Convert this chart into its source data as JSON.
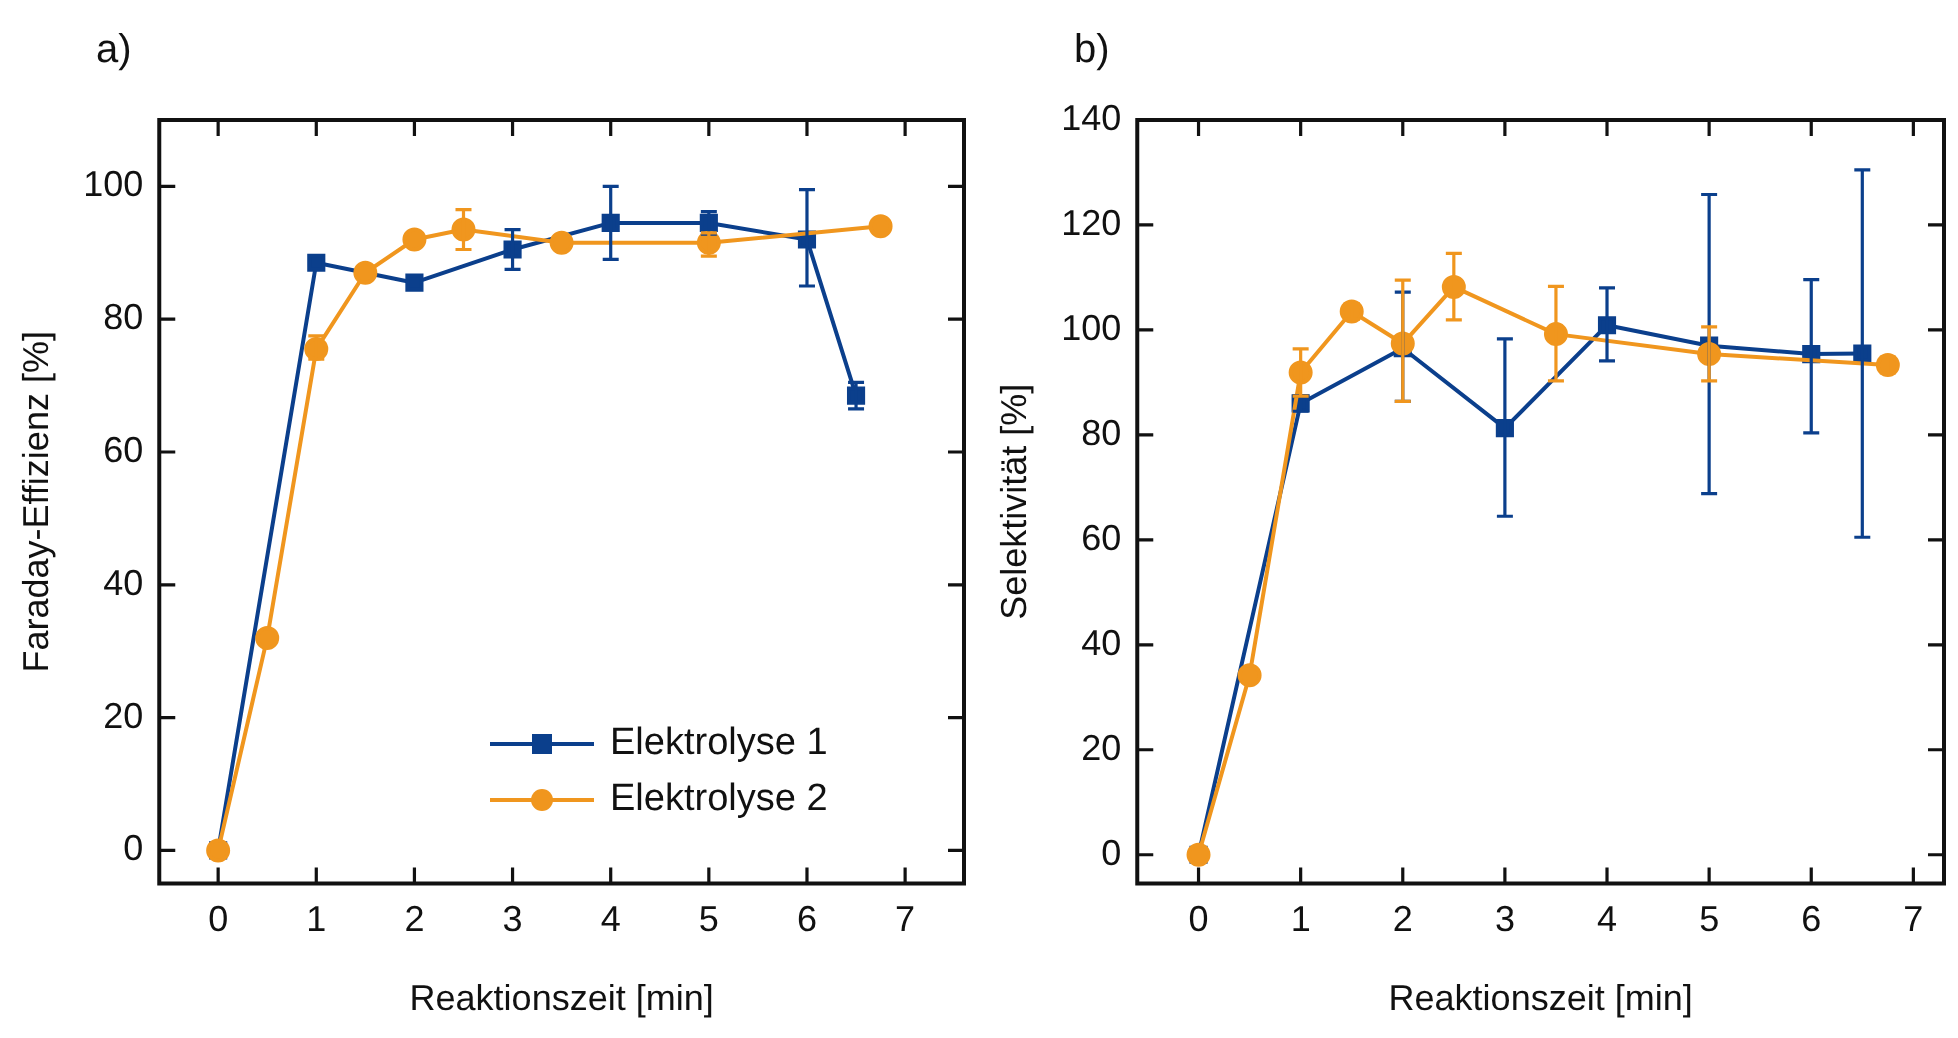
{
  "chart_data": [
    {
      "type": "line",
      "title": "a)",
      "xlabel": "Reaktionszeit [min]",
      "ylabel": "Faraday-Effizienz [%]",
      "xlim": [
        -0.6,
        7.6
      ],
      "ylim": [
        -5,
        110
      ],
      "xticks": [
        0,
        1,
        2,
        3,
        4,
        5,
        6,
        7
      ],
      "yticks": [
        0,
        20,
        40,
        60,
        80,
        100
      ],
      "grid": false,
      "legend": "bottom right",
      "line_style": "solid",
      "series": [
        {
          "name": "Elektrolyse 1",
          "color": "#0b3f8c",
          "marker": "square",
          "x": [
            0,
            1,
            2,
            3,
            4,
            5,
            6,
            6.5
          ],
          "values": [
            0,
            88.5,
            85.5,
            90.5,
            94.5,
            94.5,
            92,
            68.5
          ],
          "errors": [
            null,
            null,
            null,
            [
              87.5,
              93.5
            ],
            [
              89,
              100
            ],
            [
              92.8,
              96.2
            ],
            [
              85,
              99.5
            ],
            [
              66.5,
              70.5
            ]
          ]
        },
        {
          "name": "Elektrolyse 2",
          "color": "#f0961e",
          "marker": "circle",
          "x": [
            0,
            0.5,
            1,
            1.5,
            2,
            2.5,
            3.5,
            5,
            6.75
          ],
          "values": [
            0,
            32,
            75.5,
            87,
            92,
            93.5,
            91.5,
            91.5,
            94
          ],
          "errors": [
            null,
            null,
            [
              74,
              77.5
            ],
            null,
            null,
            [
              90.5,
              96.5
            ],
            null,
            [
              89.5,
              93
            ],
            null
          ]
        }
      ]
    },
    {
      "type": "line",
      "title": "b)",
      "xlabel": "Reaktionszeit [min]",
      "ylabel": "Selektivität [%]",
      "xlim": [
        -0.6,
        7.3
      ],
      "ylim": [
        -5.5,
        140
      ],
      "xticks": [
        0,
        1,
        2,
        3,
        4,
        5,
        6,
        7
      ],
      "yticks": [
        0,
        20,
        40,
        60,
        80,
        100,
        120,
        140
      ],
      "grid": false,
      "legend": false,
      "line_style": "solid",
      "series": [
        {
          "color": "#0b3f8c",
          "marker": "square",
          "x": [
            0,
            1,
            2,
            3,
            4,
            5,
            6,
            6.5
          ],
          "values": [
            0,
            86,
            96.5,
            81.3,
            100.9,
            97,
            95.4,
            95.5
          ],
          "errors": [
            null,
            [
              84.5,
              87.5
            ],
            [
              86.4,
              107.2
            ],
            [
              64.5,
              98.3
            ],
            [
              94.1,
              108
            ],
            [
              68.8,
              125.8
            ],
            [
              80.4,
              109.6
            ],
            [
              60.5,
              130.5
            ]
          ]
        },
        {
          "color": "#f0961e",
          "marker": "circle",
          "x": [
            0,
            0.5,
            1,
            1.5,
            2,
            2.5,
            3.5,
            5,
            6.75
          ],
          "values": [
            0,
            34.2,
            91.9,
            103.5,
            97.4,
            108.2,
            99.2,
            95.4,
            93.3
          ],
          "errors": [
            null,
            null,
            [
              87.4,
              96.4
            ],
            [
              102,
              105
            ],
            [
              86.4,
              109.5
            ],
            [
              101.9,
              114.6
            ],
            [
              90.3,
              108.3
            ],
            [
              90.3,
              100.6
            ],
            [
              91.8,
              94.8
            ]
          ]
        }
      ]
    }
  ]
}
